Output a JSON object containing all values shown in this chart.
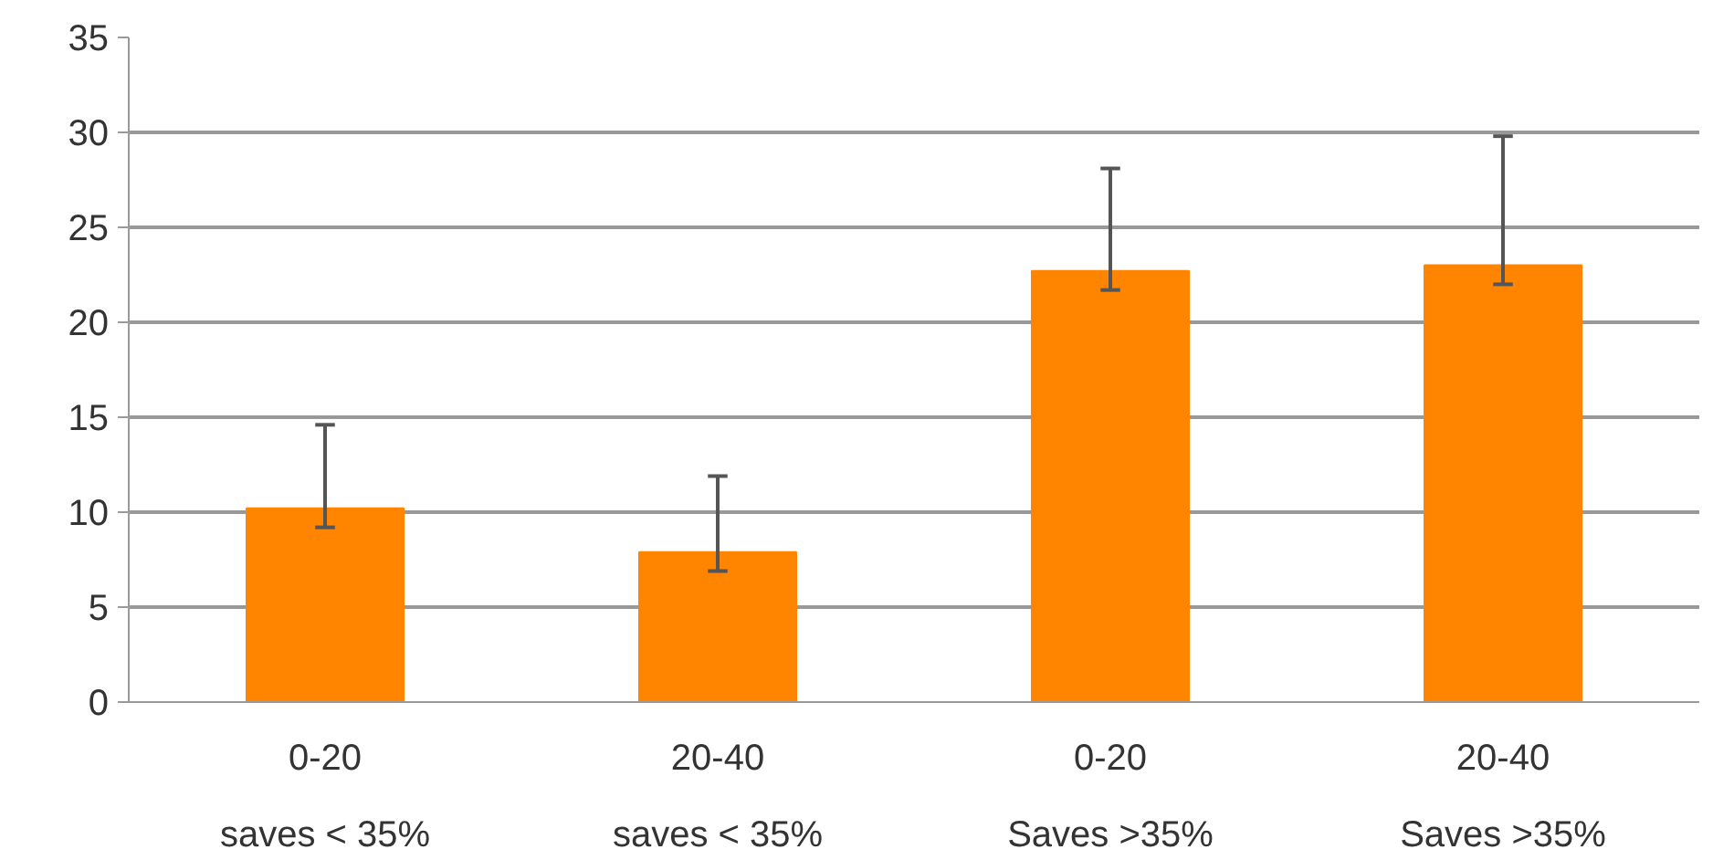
{
  "chart_data": {
    "type": "bar",
    "categories": [
      "0-20\nsaves < 35%",
      "20-40\nsaves < 35%",
      "0-20\nSaves >35%",
      "20-40\nSaves >35%"
    ],
    "values": [
      10.2,
      7.9,
      22.7,
      23.0
    ],
    "errors": [
      [
        9.2,
        14.6
      ],
      [
        6.9,
        11.9
      ],
      [
        21.7,
        28.1
      ],
      [
        22.0,
        29.8
      ]
    ],
    "color": "#ff8400",
    "ylim": [
      0,
      35
    ],
    "yticks": [
      0,
      5,
      10,
      15,
      20,
      25,
      30,
      35
    ],
    "grid": "y"
  }
}
